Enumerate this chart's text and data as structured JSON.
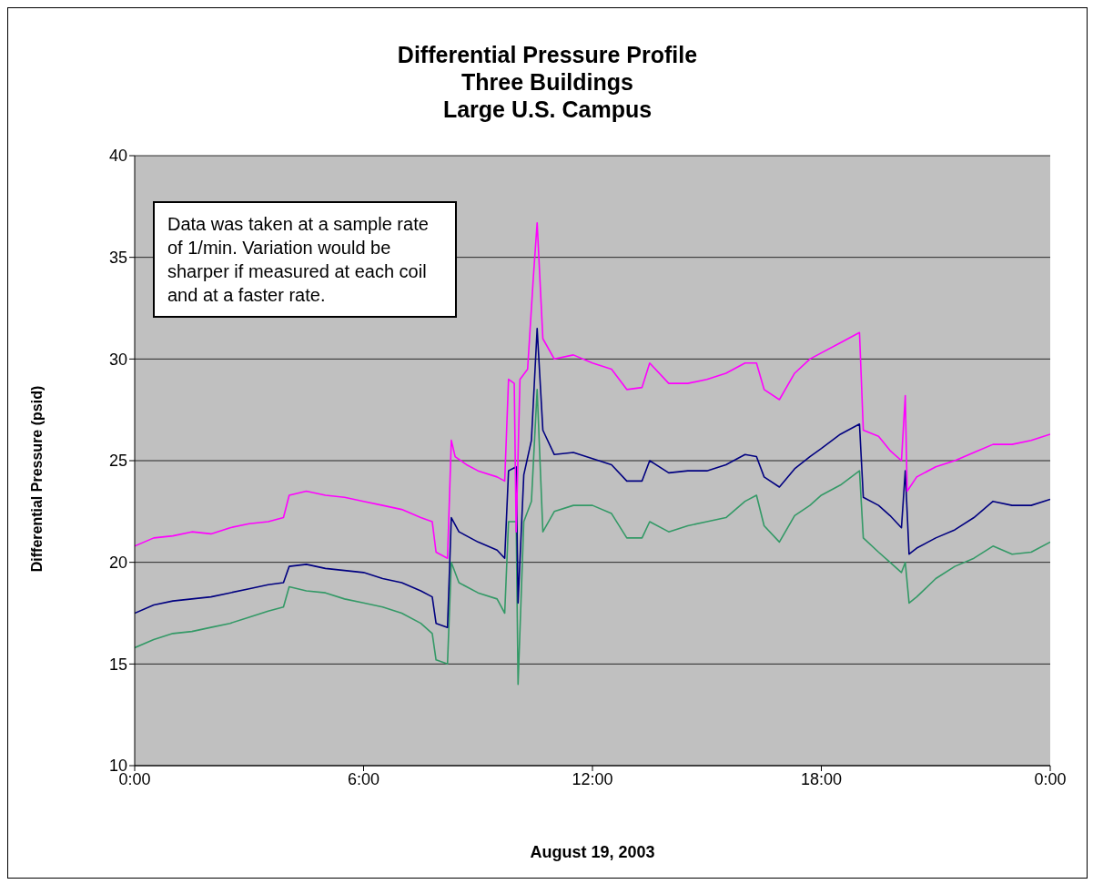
{
  "chart_data": {
    "type": "line",
    "title": "Differential Pressure Profile\nThree Buildings\nLarge U.S. Campus",
    "xlabel": "August 19, 2003",
    "ylabel": "Differential Pressure (psid)",
    "annotations": [
      "Data was taken at a sample rate of 1/min. Variation would be sharper if measured at each coil and at a faster rate."
    ],
    "xlim": [
      0,
      24
    ],
    "xticks": [
      {
        "value": 0,
        "label": "0:00"
      },
      {
        "value": 6,
        "label": "6:00"
      },
      {
        "value": 12,
        "label": "12:00"
      },
      {
        "value": 18,
        "label": "18:00"
      },
      {
        "value": 24,
        "label": "0:00"
      }
    ],
    "ylim": [
      10,
      40
    ],
    "yticks": [
      10,
      15,
      20,
      25,
      30,
      35,
      40
    ],
    "grid": "y",
    "legend": false,
    "marker": "none",
    "line_style": "solid",
    "series": [
      {
        "color": "#ff00ff",
        "x": [
          0,
          0.5,
          1,
          1.5,
          2,
          2.5,
          3,
          3.5,
          3.9,
          4.05,
          4.5,
          5,
          5.5,
          6,
          6.5,
          7,
          7.5,
          7.8,
          7.9,
          8.2,
          8.3,
          8.4,
          8.7,
          9,
          9.5,
          9.7,
          9.8,
          9.95,
          10,
          10.1,
          10.3,
          10.45,
          10.55,
          10.7,
          11,
          11.5,
          12,
          12.5,
          12.9,
          13.3,
          13.5,
          14,
          14.5,
          15,
          15.5,
          16,
          16.3,
          16.5,
          16.9,
          17.3,
          17.7,
          18,
          18.5,
          19,
          19.1,
          19.5,
          19.8,
          20.1,
          20.2,
          20.25,
          20.5,
          21,
          21.5,
          22,
          22.5,
          23,
          23.5,
          24
        ],
        "values": [
          20.8,
          21.2,
          21.3,
          21.5,
          21.4,
          21.7,
          21.9,
          22,
          22.2,
          23.3,
          23.5,
          23.3,
          23.2,
          23,
          22.8,
          22.6,
          22.2,
          22,
          20.5,
          20.2,
          26,
          25.2,
          24.8,
          24.5,
          24.2,
          24,
          29,
          28.8,
          21.5,
          29,
          29.5,
          34,
          36.7,
          31,
          30,
          30.2,
          29.8,
          29.5,
          28.5,
          28.6,
          29.8,
          28.8,
          28.8,
          29,
          29.3,
          29.8,
          29.8,
          28.5,
          28,
          29.3,
          30,
          30.3,
          30.8,
          31.3,
          26.5,
          26.2,
          25.5,
          25,
          28.2,
          23.5,
          24.2,
          24.7,
          25,
          25.4,
          25.8,
          25.8,
          26,
          26.3
        ]
      },
      {
        "color": "#000080",
        "x": [
          0,
          0.5,
          1,
          1.5,
          2,
          2.5,
          3,
          3.5,
          3.9,
          4.05,
          4.5,
          5,
          5.5,
          6,
          6.5,
          7,
          7.5,
          7.8,
          7.9,
          8.2,
          8.3,
          8.5,
          9,
          9.5,
          9.7,
          9.8,
          10,
          10.05,
          10.2,
          10.4,
          10.55,
          10.7,
          11,
          11.5,
          12,
          12.5,
          12.9,
          13.3,
          13.5,
          14,
          14.5,
          15,
          15.5,
          16,
          16.3,
          16.5,
          16.9,
          17.3,
          17.7,
          18,
          18.5,
          19,
          19.1,
          19.5,
          19.8,
          20.1,
          20.2,
          20.3,
          20.5,
          21,
          21.5,
          22,
          22.5,
          23,
          23.5,
          24
        ],
        "values": [
          17.5,
          17.9,
          18.1,
          18.2,
          18.3,
          18.5,
          18.7,
          18.9,
          19,
          19.8,
          19.9,
          19.7,
          19.6,
          19.5,
          19.2,
          19,
          18.6,
          18.3,
          17,
          16.8,
          22.2,
          21.5,
          21,
          20.6,
          20.2,
          24.5,
          24.7,
          18,
          24.3,
          26,
          31.5,
          26.5,
          25.3,
          25.4,
          25.1,
          24.8,
          24,
          24,
          25,
          24.4,
          24.5,
          24.5,
          24.8,
          25.3,
          25.2,
          24.2,
          23.7,
          24.6,
          25.2,
          25.6,
          26.3,
          26.8,
          23.2,
          22.8,
          22.3,
          21.7,
          24.5,
          20.4,
          20.7,
          21.2,
          21.6,
          22.2,
          23,
          22.8,
          22.8,
          23.1
        ]
      },
      {
        "color": "#339966",
        "x": [
          0,
          0.5,
          1,
          1.5,
          2,
          2.5,
          3,
          3.5,
          3.9,
          4.05,
          4.5,
          5,
          5.5,
          6,
          6.5,
          7,
          7.5,
          7.8,
          7.9,
          8.2,
          8.3,
          8.5,
          9,
          9.5,
          9.7,
          9.8,
          10,
          10.05,
          10.2,
          10.4,
          10.55,
          10.7,
          11,
          11.5,
          12,
          12.5,
          12.9,
          13.3,
          13.5,
          14,
          14.5,
          15,
          15.5,
          16,
          16.3,
          16.5,
          16.9,
          17.3,
          17.7,
          18,
          18.5,
          19,
          19.1,
          19.5,
          19.8,
          20.1,
          20.2,
          20.3,
          20.5,
          21,
          21.5,
          22,
          22.5,
          23,
          23.5,
          24
        ],
        "values": [
          15.8,
          16.2,
          16.5,
          16.6,
          16.8,
          17,
          17.3,
          17.6,
          17.8,
          18.8,
          18.6,
          18.5,
          18.2,
          18,
          17.8,
          17.5,
          17,
          16.5,
          15.2,
          15,
          20,
          19,
          18.5,
          18.2,
          17.5,
          22,
          22,
          14,
          22,
          23,
          28.5,
          21.5,
          22.5,
          22.8,
          22.8,
          22.4,
          21.2,
          21.2,
          22,
          21.5,
          21.8,
          22,
          22.2,
          23,
          23.3,
          21.8,
          21,
          22.3,
          22.8,
          23.3,
          23.8,
          24.5,
          21.2,
          20.5,
          20,
          19.5,
          20,
          18,
          18.3,
          19.2,
          19.8,
          20.2,
          20.8,
          20.4,
          20.5,
          21
        ]
      }
    ]
  }
}
